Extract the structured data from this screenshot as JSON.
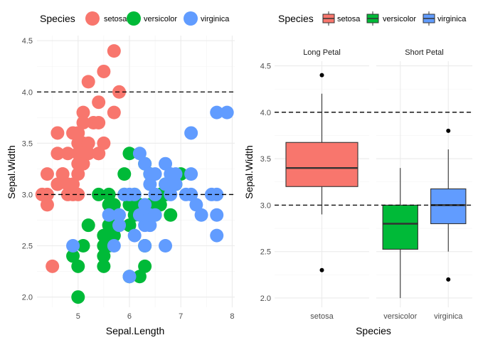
{
  "chart_data": [
    {
      "type": "scatter",
      "xlabel": "Sepal.Length",
      "ylabel": "Sepal.Width",
      "xlim": [
        4.2,
        8.05
      ],
      "ylim": [
        1.9,
        4.55
      ],
      "x_ticks": [
        "5",
        "6",
        "7",
        "8"
      ],
      "y_ticks": [
        "2.0",
        "2.5",
        "3.0",
        "3.5",
        "4.0",
        "4.5"
      ],
      "grid": true,
      "legend": {
        "title": "Species",
        "placement": "top",
        "labels": [
          "setosa",
          "versicolor",
          "virginica"
        ]
      },
      "hlines": [
        3.0,
        4.0
      ],
      "series": [
        {
          "name": "setosa",
          "color": "#F8766D",
          "points": [
            [
              4.3,
              3.0
            ],
            [
              4.4,
              2.9
            ],
            [
              4.4,
              3.2
            ],
            [
              4.5,
              2.3
            ],
            [
              4.6,
              3.4
            ],
            [
              4.6,
              3.1
            ],
            [
              4.6,
              3.6
            ],
            [
              4.7,
              3.2
            ],
            [
              4.8,
              3.4
            ],
            [
              4.8,
              3.0
            ],
            [
              4.9,
              3.0
            ],
            [
              4.9,
              3.1
            ],
            [
              5.0,
              3.6
            ],
            [
              5.0,
              3.4
            ],
            [
              5.0,
              3.0
            ],
            [
              5.0,
              3.5
            ],
            [
              5.0,
              3.2
            ],
            [
              5.1,
              3.5
            ],
            [
              5.1,
              3.8
            ],
            [
              5.1,
              3.7
            ],
            [
              5.1,
              3.3
            ],
            [
              5.2,
              3.5
            ],
            [
              5.2,
              3.4
            ],
            [
              5.2,
              4.1
            ],
            [
              5.3,
              3.7
            ],
            [
              5.4,
              3.9
            ],
            [
              5.4,
              3.7
            ],
            [
              5.4,
              3.4
            ],
            [
              5.5,
              4.2
            ],
            [
              5.5,
              3.5
            ],
            [
              5.7,
              4.4
            ],
            [
              5.7,
              3.8
            ],
            [
              5.8,
              4.0
            ],
            [
              5.4,
              3.4
            ],
            [
              5.1,
              3.4
            ],
            [
              4.8,
              3.1
            ],
            [
              4.9,
              3.6
            ],
            [
              4.4,
              3.0
            ],
            [
              5.0,
              3.3
            ],
            [
              4.7,
              3.2
            ]
          ]
        },
        {
          "name": "versicolor",
          "color": "#00BA38",
          "points": [
            [
              4.9,
              2.4
            ],
            [
              5.0,
              2.0
            ],
            [
              5.0,
              2.3
            ],
            [
              5.1,
              2.5
            ],
            [
              5.2,
              2.7
            ],
            [
              5.4,
              3.0
            ],
            [
              5.5,
              2.3
            ],
            [
              5.5,
              2.4
            ],
            [
              5.5,
              2.5
            ],
            [
              5.5,
              2.6
            ],
            [
              5.6,
              2.9
            ],
            [
              5.6,
              3.0
            ],
            [
              5.6,
              2.5
            ],
            [
              5.6,
              2.7
            ],
            [
              5.7,
              2.8
            ],
            [
              5.7,
              2.6
            ],
            [
              5.7,
              2.9
            ],
            [
              5.8,
              2.7
            ],
            [
              5.9,
              3.0
            ],
            [
              5.9,
              3.2
            ],
            [
              6.0,
              2.2
            ],
            [
              6.0,
              2.9
            ],
            [
              6.0,
              2.7
            ],
            [
              6.0,
              3.4
            ],
            [
              6.1,
              2.9
            ],
            [
              6.1,
              2.8
            ],
            [
              6.1,
              3.0
            ],
            [
              6.2,
              2.2
            ],
            [
              6.2,
              2.9
            ],
            [
              6.3,
              3.3
            ],
            [
              6.3,
              2.5
            ],
            [
              6.3,
              2.3
            ],
            [
              6.4,
              3.2
            ],
            [
              6.4,
              2.9
            ],
            [
              6.5,
              2.8
            ],
            [
              6.6,
              2.9
            ],
            [
              6.6,
              3.0
            ],
            [
              6.7,
              3.1
            ],
            [
              6.7,
              3.0
            ],
            [
              6.8,
              2.8
            ],
            [
              6.9,
              3.1
            ],
            [
              7.0,
              3.2
            ]
          ]
        },
        {
          "name": "virginica",
          "color": "#619CFF",
          "points": [
            [
              4.9,
              2.5
            ],
            [
              5.6,
              2.8
            ],
            [
              5.7,
              2.5
            ],
            [
              5.8,
              2.8
            ],
            [
              5.8,
              2.7
            ],
            [
              5.9,
              3.0
            ],
            [
              6.0,
              3.0
            ],
            [
              6.0,
              2.2
            ],
            [
              6.1,
              3.0
            ],
            [
              6.1,
              2.6
            ],
            [
              6.2,
              2.8
            ],
            [
              6.2,
              3.4
            ],
            [
              6.3,
              3.3
            ],
            [
              6.3,
              2.7
            ],
            [
              6.3,
              2.9
            ],
            [
              6.3,
              2.5
            ],
            [
              6.3,
              2.8
            ],
            [
              6.4,
              2.7
            ],
            [
              6.4,
              3.2
            ],
            [
              6.4,
              2.8
            ],
            [
              6.4,
              3.1
            ],
            [
              6.5,
              3.0
            ],
            [
              6.5,
              3.2
            ],
            [
              6.5,
              2.8
            ],
            [
              6.5,
              3.0
            ],
            [
              6.7,
              3.3
            ],
            [
              6.7,
              2.5
            ],
            [
              6.7,
              3.1
            ],
            [
              6.8,
              3.0
            ],
            [
              6.8,
              3.2
            ],
            [
              6.9,
              3.2
            ],
            [
              6.9,
              3.1
            ],
            [
              7.1,
              3.0
            ],
            [
              7.2,
              3.6
            ],
            [
              7.2,
              3.2
            ],
            [
              7.2,
              3.0
            ],
            [
              7.3,
              2.9
            ],
            [
              7.4,
              2.8
            ],
            [
              7.6,
              3.0
            ],
            [
              7.7,
              3.8
            ],
            [
              7.7,
              2.6
            ],
            [
              7.7,
              2.8
            ],
            [
              7.7,
              3.0
            ],
            [
              7.9,
              3.8
            ]
          ]
        }
      ]
    },
    {
      "type": "box",
      "xlabel": "Species",
      "ylabel": "Sepal.Width",
      "ylim": [
        1.9,
        4.55
      ],
      "y_ticks": [
        "2.0",
        "2.5",
        "3.0",
        "3.5",
        "4.0",
        "4.5"
      ],
      "grid": true,
      "legend": {
        "title": "Species",
        "placement": "top",
        "labels": [
          "setosa",
          "versicolor",
          "virginica"
        ]
      },
      "hlines": [
        3.0,
        4.0
      ],
      "facets": [
        {
          "label": "Long Petal",
          "boxes": [
            {
              "category": "setosa",
              "color": "#F8766D",
              "whisker_low": 2.9,
              "q1": 3.2,
              "median": 3.4,
              "q3": 3.675,
              "whisker_high": 4.2,
              "outliers": [
                4.4,
                2.3
              ]
            }
          ]
        },
        {
          "label": "Short Petal",
          "boxes": [
            {
              "category": "versicolor",
              "color": "#00BA38",
              "whisker_low": 2.0,
              "q1": 2.525,
              "median": 2.8,
              "q3": 3.0,
              "whisker_high": 3.4,
              "outliers": []
            },
            {
              "category": "virginica",
              "color": "#619CFF",
              "whisker_low": 2.5,
              "q1": 2.8,
              "median": 3.0,
              "q3": 3.175,
              "whisker_high": 3.6,
              "outliers": [
                3.8,
                2.2
              ]
            }
          ]
        }
      ]
    }
  ]
}
